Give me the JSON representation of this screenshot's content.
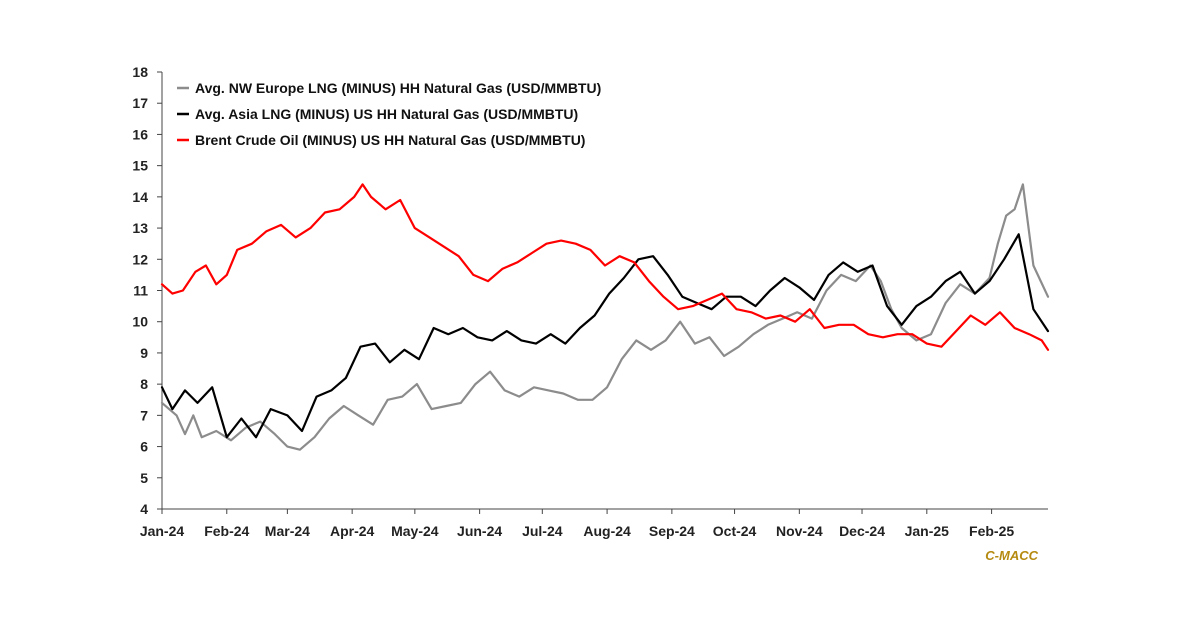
{
  "chart_data": {
    "type": "line",
    "title": "",
    "xlabel": "",
    "ylabel": "",
    "ylim": [
      4,
      18
    ],
    "y_ticks": [
      4,
      5,
      6,
      7,
      8,
      9,
      10,
      11,
      12,
      13,
      14,
      15,
      16,
      17,
      18
    ],
    "x_range": [
      "2024-01-01",
      "2025-02-28"
    ],
    "x_ticks": [
      "Jan-24",
      "Feb-24",
      "Mar-24",
      "Apr-24",
      "May-24",
      "Jun-24",
      "Jul-24",
      "Aug-24",
      "Sep-24",
      "Oct-24",
      "Nov-24",
      "Dec-24",
      "Jan-25",
      "Feb-25"
    ],
    "grid": false,
    "legend_position": "top-left",
    "credit": "C-MACC",
    "series": [
      {
        "name": "Avg. NW Europe LNG (MINUS) HH Natural Gas (USD/MMBTU)",
        "color": "#8c8c8c",
        "points": [
          [
            "2024-01-01",
            7.4
          ],
          [
            "2024-01-08",
            7.0
          ],
          [
            "2024-01-12",
            6.4
          ],
          [
            "2024-01-16",
            7.0
          ],
          [
            "2024-01-20",
            6.3
          ],
          [
            "2024-01-27",
            6.5
          ],
          [
            "2024-02-03",
            6.2
          ],
          [
            "2024-02-10",
            6.6
          ],
          [
            "2024-02-17",
            6.8
          ],
          [
            "2024-02-24",
            6.4
          ],
          [
            "2024-03-01",
            6.0
          ],
          [
            "2024-03-07",
            5.9
          ],
          [
            "2024-03-14",
            6.3
          ],
          [
            "2024-03-21",
            6.9
          ],
          [
            "2024-03-28",
            7.3
          ],
          [
            "2024-04-04",
            7.0
          ],
          [
            "2024-04-11",
            6.7
          ],
          [
            "2024-04-18",
            7.5
          ],
          [
            "2024-04-25",
            7.6
          ],
          [
            "2024-05-02",
            8.0
          ],
          [
            "2024-05-09",
            7.2
          ],
          [
            "2024-05-16",
            7.3
          ],
          [
            "2024-05-23",
            7.4
          ],
          [
            "2024-05-30",
            8.0
          ],
          [
            "2024-06-06",
            8.4
          ],
          [
            "2024-06-13",
            7.8
          ],
          [
            "2024-06-20",
            7.6
          ],
          [
            "2024-06-27",
            7.9
          ],
          [
            "2024-07-04",
            7.8
          ],
          [
            "2024-07-11",
            7.7
          ],
          [
            "2024-07-18",
            7.5
          ],
          [
            "2024-07-25",
            7.5
          ],
          [
            "2024-08-01",
            7.9
          ],
          [
            "2024-08-08",
            8.8
          ],
          [
            "2024-08-15",
            9.4
          ],
          [
            "2024-08-22",
            9.1
          ],
          [
            "2024-08-29",
            9.4
          ],
          [
            "2024-09-05",
            10.0
          ],
          [
            "2024-09-12",
            9.3
          ],
          [
            "2024-09-19",
            9.5
          ],
          [
            "2024-09-26",
            8.9
          ],
          [
            "2024-10-03",
            9.2
          ],
          [
            "2024-10-10",
            9.6
          ],
          [
            "2024-10-17",
            9.9
          ],
          [
            "2024-10-24",
            10.1
          ],
          [
            "2024-10-31",
            10.3
          ],
          [
            "2024-11-07",
            10.1
          ],
          [
            "2024-11-14",
            11.0
          ],
          [
            "2024-11-21",
            11.5
          ],
          [
            "2024-11-28",
            11.3
          ],
          [
            "2024-12-05",
            11.8
          ],
          [
            "2024-12-10",
            11.3
          ],
          [
            "2024-12-15",
            10.4
          ],
          [
            "2024-12-20",
            9.8
          ],
          [
            "2024-12-27",
            9.4
          ],
          [
            "2025-01-03",
            9.6
          ],
          [
            "2025-01-10",
            10.6
          ],
          [
            "2025-01-17",
            11.2
          ],
          [
            "2025-01-24",
            10.9
          ],
          [
            "2025-01-31",
            11.4
          ],
          [
            "2025-02-04",
            12.5
          ],
          [
            "2025-02-08",
            13.4
          ],
          [
            "2025-02-12",
            13.6
          ],
          [
            "2025-02-16",
            14.4
          ],
          [
            "2025-02-21",
            11.8
          ],
          [
            "2025-02-28",
            10.8
          ]
        ]
      },
      {
        "name": "Avg. Asia LNG (MINUS) US HH Natural Gas (USD/MMBTU)",
        "color": "#000000",
        "points": [
          [
            "2024-01-01",
            7.9
          ],
          [
            "2024-01-06",
            7.2
          ],
          [
            "2024-01-12",
            7.8
          ],
          [
            "2024-01-18",
            7.4
          ],
          [
            "2024-01-25",
            7.9
          ],
          [
            "2024-02-01",
            6.3
          ],
          [
            "2024-02-08",
            6.9
          ],
          [
            "2024-02-15",
            6.3
          ],
          [
            "2024-02-22",
            7.2
          ],
          [
            "2024-03-01",
            7.0
          ],
          [
            "2024-03-08",
            6.5
          ],
          [
            "2024-03-15",
            7.6
          ],
          [
            "2024-03-22",
            7.8
          ],
          [
            "2024-03-29",
            8.2
          ],
          [
            "2024-04-05",
            9.2
          ],
          [
            "2024-04-12",
            9.3
          ],
          [
            "2024-04-19",
            8.7
          ],
          [
            "2024-04-26",
            9.1
          ],
          [
            "2024-05-03",
            8.8
          ],
          [
            "2024-05-10",
            9.8
          ],
          [
            "2024-05-17",
            9.6
          ],
          [
            "2024-05-24",
            9.8
          ],
          [
            "2024-05-31",
            9.5
          ],
          [
            "2024-06-07",
            9.4
          ],
          [
            "2024-06-14",
            9.7
          ],
          [
            "2024-06-21",
            9.4
          ],
          [
            "2024-06-28",
            9.3
          ],
          [
            "2024-07-05",
            9.6
          ],
          [
            "2024-07-12",
            9.3
          ],
          [
            "2024-07-19",
            9.8
          ],
          [
            "2024-07-26",
            10.2
          ],
          [
            "2024-08-02",
            10.9
          ],
          [
            "2024-08-09",
            11.4
          ],
          [
            "2024-08-16",
            12.0
          ],
          [
            "2024-08-23",
            12.1
          ],
          [
            "2024-08-30",
            11.5
          ],
          [
            "2024-09-06",
            10.8
          ],
          [
            "2024-09-13",
            10.6
          ],
          [
            "2024-09-20",
            10.4
          ],
          [
            "2024-09-27",
            10.8
          ],
          [
            "2024-10-04",
            10.8
          ],
          [
            "2024-10-11",
            10.5
          ],
          [
            "2024-10-18",
            11.0
          ],
          [
            "2024-10-25",
            11.4
          ],
          [
            "2024-11-01",
            11.1
          ],
          [
            "2024-11-08",
            10.7
          ],
          [
            "2024-11-15",
            11.5
          ],
          [
            "2024-11-22",
            11.9
          ],
          [
            "2024-11-29",
            11.6
          ],
          [
            "2024-12-06",
            11.8
          ],
          [
            "2024-12-13",
            10.5
          ],
          [
            "2024-12-20",
            9.9
          ],
          [
            "2024-12-27",
            10.5
          ],
          [
            "2025-01-03",
            10.8
          ],
          [
            "2025-01-10",
            11.3
          ],
          [
            "2025-01-17",
            11.6
          ],
          [
            "2025-01-24",
            10.9
          ],
          [
            "2025-01-31",
            11.3
          ],
          [
            "2025-02-07",
            12.0
          ],
          [
            "2025-02-14",
            12.8
          ],
          [
            "2025-02-21",
            10.4
          ],
          [
            "2025-02-28",
            9.7
          ]
        ]
      },
      {
        "name": "Brent Crude Oil (MINUS) US HH Natural Gas (USD/MMBTU)",
        "color": "#ff0000",
        "points": [
          [
            "2024-01-01",
            11.2
          ],
          [
            "2024-01-06",
            10.9
          ],
          [
            "2024-01-11",
            11.0
          ],
          [
            "2024-01-17",
            11.6
          ],
          [
            "2024-01-22",
            11.8
          ],
          [
            "2024-01-27",
            11.2
          ],
          [
            "2024-02-01",
            11.5
          ],
          [
            "2024-02-06",
            12.3
          ],
          [
            "2024-02-13",
            12.5
          ],
          [
            "2024-02-20",
            12.9
          ],
          [
            "2024-02-27",
            13.1
          ],
          [
            "2024-03-05",
            12.7
          ],
          [
            "2024-03-12",
            13.0
          ],
          [
            "2024-03-19",
            13.5
          ],
          [
            "2024-03-26",
            13.6
          ],
          [
            "2024-04-02",
            14.0
          ],
          [
            "2024-04-06",
            14.4
          ],
          [
            "2024-04-10",
            14.0
          ],
          [
            "2024-04-17",
            13.6
          ],
          [
            "2024-04-24",
            13.9
          ],
          [
            "2024-05-01",
            13.0
          ],
          [
            "2024-05-08",
            12.7
          ],
          [
            "2024-05-15",
            12.4
          ],
          [
            "2024-05-22",
            12.1
          ],
          [
            "2024-05-29",
            11.5
          ],
          [
            "2024-06-05",
            11.3
          ],
          [
            "2024-06-12",
            11.7
          ],
          [
            "2024-06-19",
            11.9
          ],
          [
            "2024-06-26",
            12.2
          ],
          [
            "2024-07-03",
            12.5
          ],
          [
            "2024-07-10",
            12.6
          ],
          [
            "2024-07-17",
            12.5
          ],
          [
            "2024-07-24",
            12.3
          ],
          [
            "2024-07-31",
            11.8
          ],
          [
            "2024-08-07",
            12.1
          ],
          [
            "2024-08-14",
            11.9
          ],
          [
            "2024-08-21",
            11.3
          ],
          [
            "2024-08-28",
            10.8
          ],
          [
            "2024-09-04",
            10.4
          ],
          [
            "2024-09-11",
            10.5
          ],
          [
            "2024-09-18",
            10.7
          ],
          [
            "2024-09-25",
            10.9
          ],
          [
            "2024-10-02",
            10.4
          ],
          [
            "2024-10-09",
            10.3
          ],
          [
            "2024-10-16",
            10.1
          ],
          [
            "2024-10-23",
            10.2
          ],
          [
            "2024-10-30",
            10.0
          ],
          [
            "2024-11-06",
            10.4
          ],
          [
            "2024-11-13",
            9.8
          ],
          [
            "2024-11-20",
            9.9
          ],
          [
            "2024-11-27",
            9.9
          ],
          [
            "2024-12-04",
            9.6
          ],
          [
            "2024-12-11",
            9.5
          ],
          [
            "2024-12-18",
            9.6
          ],
          [
            "2024-12-25",
            9.6
          ],
          [
            "2025-01-01",
            9.3
          ],
          [
            "2025-01-08",
            9.2
          ],
          [
            "2025-01-15",
            9.7
          ],
          [
            "2025-01-22",
            10.2
          ],
          [
            "2025-01-29",
            9.9
          ],
          [
            "2025-02-05",
            10.3
          ],
          [
            "2025-02-12",
            9.8
          ],
          [
            "2025-02-19",
            9.6
          ],
          [
            "2025-02-25",
            9.4
          ],
          [
            "2025-02-28",
            9.1
          ]
        ]
      }
    ]
  }
}
